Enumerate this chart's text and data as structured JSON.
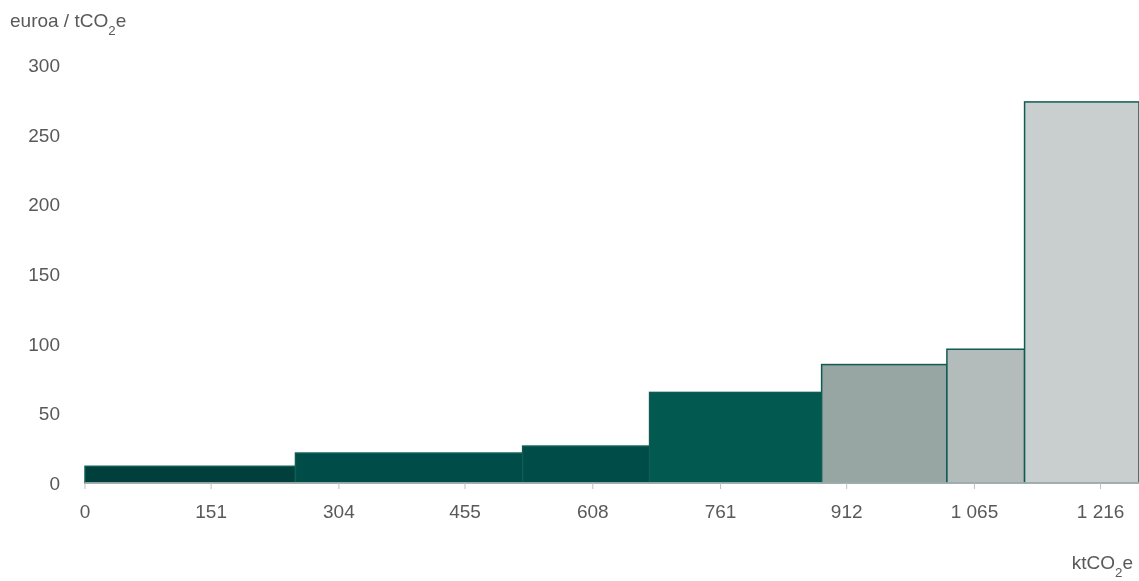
{
  "chart_data": {
    "type": "histogram",
    "xlabel": "ktCO$_{2}$e",
    "ylabel": "euroa / tCO$_{2}$e",
    "bins": [
      0,
      252,
      524,
      676,
      882,
      1032,
      1125,
      1262
    ],
    "values": [
      12,
      21.5,
      26.5,
      65,
      85,
      96,
      273.5
    ],
    "colors": [
      "#003f3c",
      "#004c48",
      "#004c48",
      "#02594f",
      "#97a5a3",
      "#b3bcba",
      "#c8cfce"
    ],
    "xlim": [
      0,
      1262
    ],
    "ylim": [
      0,
      300
    ],
    "xticks": [
      0,
      151,
      304,
      455,
      608,
      761,
      912,
      {
        "value": 1065,
        "label": "1 065"
      },
      {
        "value": 1216,
        "label": "1 216"
      }
    ],
    "yticks": [
      0,
      50,
      100,
      150,
      200,
      250,
      300
    ],
    "grid": false
  }
}
